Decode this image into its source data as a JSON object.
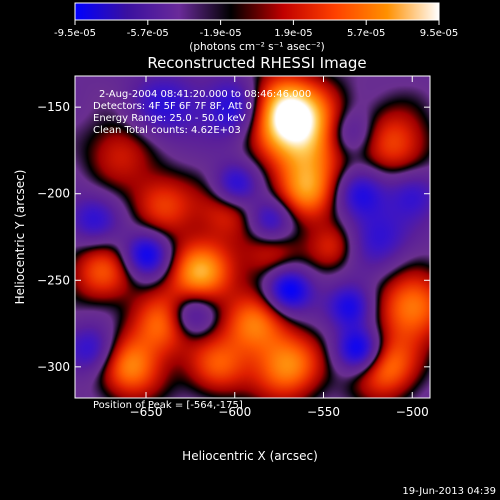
{
  "chart_data": {
    "type": "heatmap",
    "title": "Reconstructed RHESSI Image",
    "xlabel": "Heliocentric X (arcsec)",
    "ylabel": "Heliocentric Y (arcsec)",
    "xlim": [
      -690,
      -490
    ],
    "ylim": [
      -318,
      -132
    ],
    "x_ticks": [
      -650,
      -600,
      -550,
      -500
    ],
    "y_ticks": [
      -150,
      -200,
      -250,
      -300
    ],
    "grid": false,
    "colorbar": {
      "ticks": [
        "-9.5e-05",
        "-5.7e-05",
        "-1.9e-05",
        "1.9e-05",
        "5.7e-05",
        "9.5e-05"
      ],
      "units_line": "(photons cm⁻² s⁻¹ asec⁻²)",
      "range": [
        -9.5e-05,
        9.5e-05
      ],
      "stops": [
        "#0000ff",
        "#3a10a0",
        "#6a2a9a",
        "#000000",
        "#c00000",
        "#ff4000",
        "#ff9000",
        "#ffffff"
      ]
    },
    "peak": {
      "x": -564,
      "y": -175
    },
    "blobs": [
      {
        "x": -560,
        "y": -165,
        "amp": 1.0,
        "sigma": 18
      },
      {
        "x": -575,
        "y": -150,
        "amp": 0.8,
        "sigma": 14
      },
      {
        "x": -560,
        "y": -200,
        "amp": 0.7,
        "sigma": 13
      },
      {
        "x": -510,
        "y": -170,
        "amp": 0.6,
        "sigma": 14
      },
      {
        "x": -665,
        "y": -175,
        "amp": 0.45,
        "sigma": 14
      },
      {
        "x": -640,
        "y": -205,
        "amp": 0.55,
        "sigma": 13
      },
      {
        "x": -605,
        "y": -210,
        "amp": 0.5,
        "sigma": 12
      },
      {
        "x": -580,
        "y": -235,
        "amp": 0.45,
        "sigma": 12
      },
      {
        "x": -620,
        "y": -245,
        "amp": 0.9,
        "sigma": 13
      },
      {
        "x": -675,
        "y": -245,
        "amp": 0.6,
        "sigma": 13
      },
      {
        "x": -640,
        "y": -275,
        "amp": 0.7,
        "sigma": 13
      },
      {
        "x": -660,
        "y": -300,
        "amp": 0.8,
        "sigma": 13
      },
      {
        "x": -590,
        "y": -275,
        "amp": 0.7,
        "sigma": 13
      },
      {
        "x": -570,
        "y": -300,
        "amp": 0.8,
        "sigma": 14
      },
      {
        "x": -500,
        "y": -265,
        "amp": 0.8,
        "sigma": 14
      },
      {
        "x": -515,
        "y": -300,
        "amp": 0.75,
        "sigma": 13
      },
      {
        "x": -545,
        "y": -230,
        "amp": 0.45,
        "sigma": 10
      },
      {
        "x": -610,
        "y": -300,
        "amp": 0.6,
        "sigma": 12
      },
      {
        "x": -600,
        "y": -150,
        "amp": -0.7,
        "sigma": 12
      },
      {
        "x": -535,
        "y": -165,
        "amp": -0.6,
        "sigma": 10
      },
      {
        "x": -650,
        "y": -235,
        "amp": -0.8,
        "sigma": 9
      },
      {
        "x": -600,
        "y": -195,
        "amp": -0.7,
        "sigma": 9
      },
      {
        "x": -580,
        "y": -215,
        "amp": -0.7,
        "sigma": 9
      },
      {
        "x": -530,
        "y": -200,
        "amp": -0.6,
        "sigma": 10
      },
      {
        "x": -570,
        "y": -255,
        "amp": -0.9,
        "sigma": 9
      },
      {
        "x": -535,
        "y": -265,
        "amp": -0.7,
        "sigma": 9
      },
      {
        "x": -625,
        "y": -270,
        "amp": -0.6,
        "sigma": 9
      },
      {
        "x": -530,
        "y": -290,
        "amp": -0.9,
        "sigma": 9
      },
      {
        "x": -680,
        "y": -290,
        "amp": -0.6,
        "sigma": 10
      },
      {
        "x": -520,
        "y": -225,
        "amp": -0.5,
        "sigma": 12
      },
      {
        "x": -640,
        "y": -150,
        "amp": -0.5,
        "sigma": 14
      },
      {
        "x": -680,
        "y": -215,
        "amp": -0.5,
        "sigma": 10
      },
      {
        "x": -500,
        "y": -200,
        "amp": -0.5,
        "sigma": 10
      }
    ]
  },
  "info": {
    "time_range": "2-Aug-2004 08:41:20.000 to 08:46:46.000",
    "detectors": "Detectors: 4F 5F 6F 7F 8F, Att 0",
    "energy": "Energy Range: 25.0 - 50.0 keV",
    "clean": "Clean     Total counts: 4.62E+03",
    "peak_label": "Position of Peak = [-564,-175]"
  },
  "footer": {
    "date": "19-Jun-2013 04:39"
  }
}
